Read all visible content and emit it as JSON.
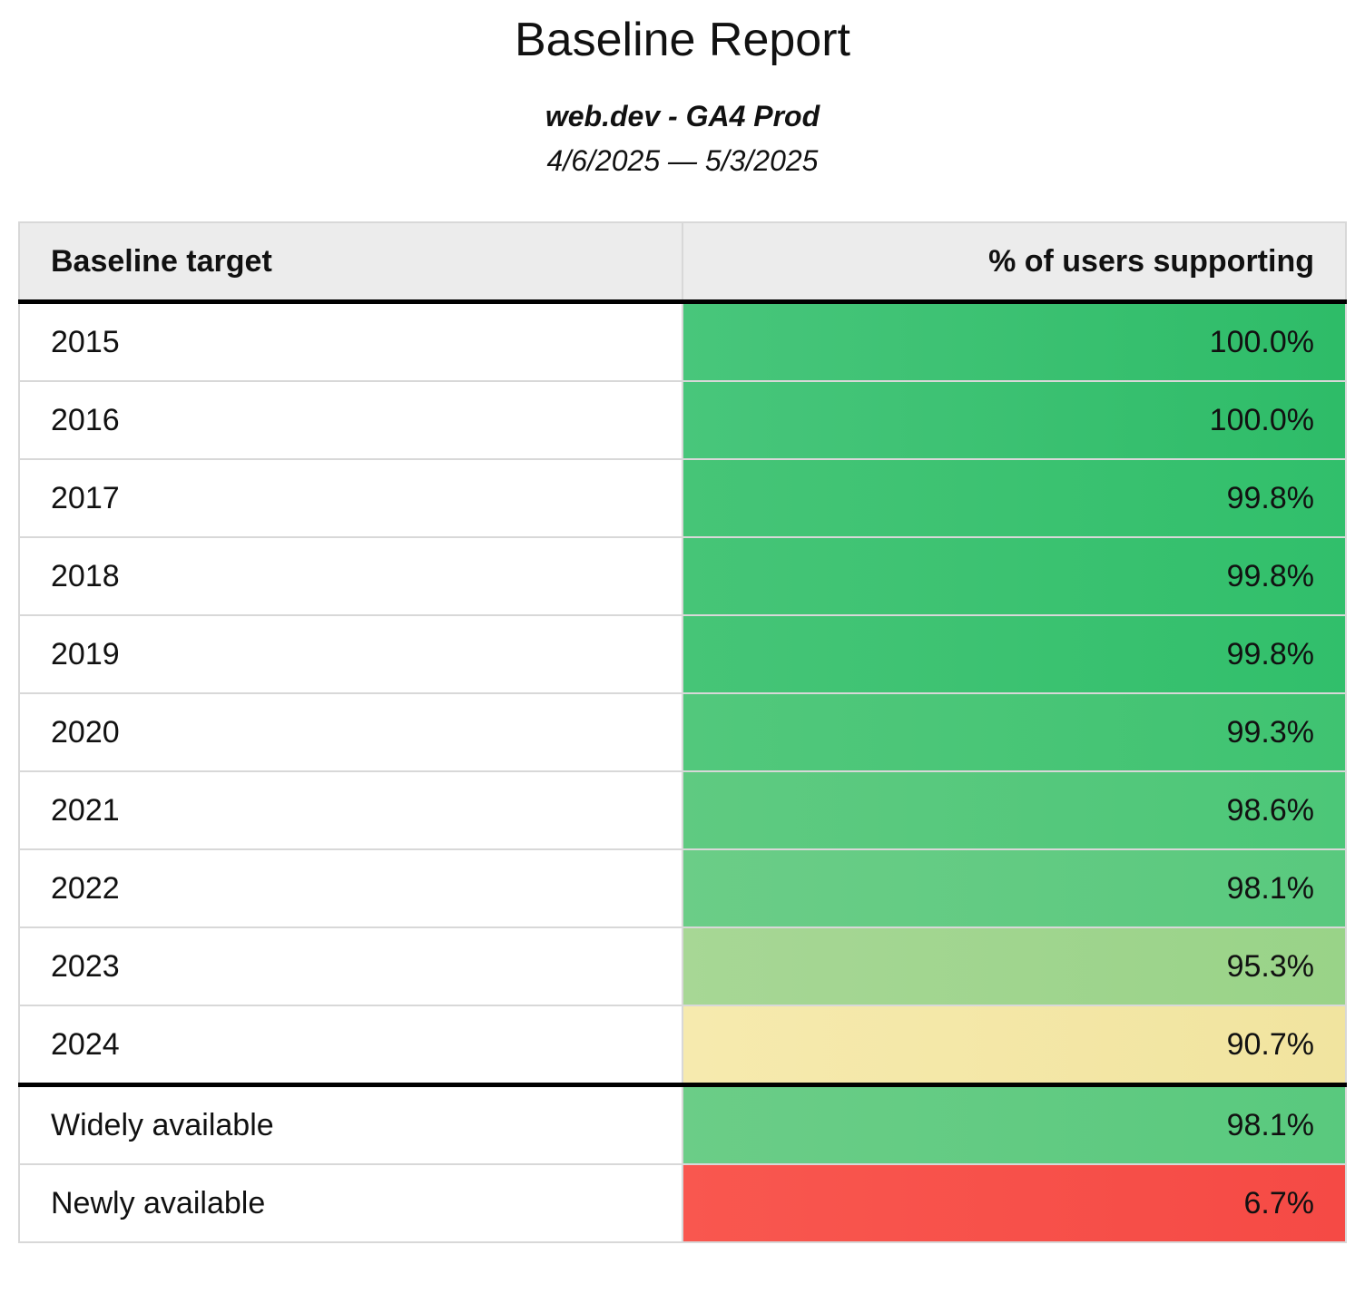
{
  "header": {
    "title": "Baseline Report",
    "subtitle": "web.dev - GA4 Prod",
    "date_range": "4/6/2025 — 5/3/2025"
  },
  "table": {
    "columns": [
      {
        "label": "Baseline target"
      },
      {
        "label": "% of users supporting"
      }
    ],
    "rows": [
      {
        "target": "2015",
        "value": "100.0%",
        "color_start": "#48c67b",
        "color_end": "#2ebc68",
        "group": "year"
      },
      {
        "target": "2016",
        "value": "100.0%",
        "color_start": "#48c67b",
        "color_end": "#2ebc68",
        "group": "year"
      },
      {
        "target": "2017",
        "value": "99.8%",
        "color_start": "#46c577",
        "color_end": "#31bf6b",
        "group": "year"
      },
      {
        "target": "2018",
        "value": "99.8%",
        "color_start": "#46c577",
        "color_end": "#31bf6b",
        "group": "year"
      },
      {
        "target": "2019",
        "value": "99.8%",
        "color_start": "#46c577",
        "color_end": "#31bf6b",
        "group": "year"
      },
      {
        "target": "2020",
        "value": "99.3%",
        "color_start": "#52c87c",
        "color_end": "#3fc371",
        "group": "year"
      },
      {
        "target": "2021",
        "value": "98.6%",
        "color_start": "#5fca81",
        "color_end": "#4cc778",
        "group": "year"
      },
      {
        "target": "2022",
        "value": "98.1%",
        "color_start": "#6bcd87",
        "color_end": "#59c97e",
        "group": "year"
      },
      {
        "target": "2023",
        "value": "95.3%",
        "color_start": "#a7d795",
        "color_end": "#99d388",
        "group": "year"
      },
      {
        "target": "2024",
        "value": "90.7%",
        "color_start": "#f6eaae",
        "color_end": "#f1e49f",
        "group": "year"
      },
      {
        "target": "Widely available",
        "value": "98.1%",
        "color_start": "#6bcd87",
        "color_end": "#59c97e",
        "group": "availability"
      },
      {
        "target": "Newly available",
        "value": "6.7%",
        "color_start": "#f9574f",
        "color_end": "#f54a45",
        "group": "availability"
      }
    ]
  },
  "chart_data": {
    "type": "table",
    "title": "Baseline Report",
    "subtitle": "web.dev - GA4 Prod",
    "date_range": "4/6/2025 — 5/3/2025",
    "columns": [
      "Baseline target",
      "% of users supporting"
    ],
    "categories": [
      "2015",
      "2016",
      "2017",
      "2018",
      "2019",
      "2020",
      "2021",
      "2022",
      "2023",
      "2024",
      "Widely available",
      "Newly available"
    ],
    "values": [
      100.0,
      100.0,
      99.8,
      99.8,
      99.8,
      99.3,
      98.6,
      98.1,
      95.3,
      90.7,
      98.1,
      6.7
    ],
    "value_unit": "%",
    "color_scale": {
      "high": "#2ebc68",
      "mid": "#f1e49f",
      "low": "#f54a45"
    }
  }
}
